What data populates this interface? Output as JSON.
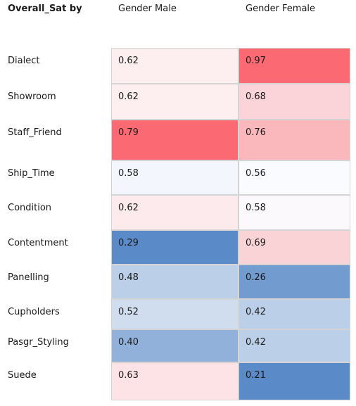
{
  "chart_data": {
    "type": "heatmap",
    "title": "Overall_Sat by",
    "columns": [
      "Gender Male",
      "Gender Female"
    ],
    "rows": [
      "Dialect",
      "Showroom",
      "Staff_Friend",
      "Ship_Time",
      "Condition",
      "Contentment",
      "Panelling",
      "Cupholders",
      "Pasgr_Styling",
      "Suede"
    ],
    "values": [
      [
        "0.62",
        "0.97"
      ],
      [
        "0.62",
        "0.68"
      ],
      [
        "0.79",
        "0.76"
      ],
      [
        "0.58",
        "0.56"
      ],
      [
        "0.62",
        "0.58"
      ],
      [
        "0.29",
        "0.69"
      ],
      [
        "0.48",
        "0.26"
      ],
      [
        "0.52",
        "0.42"
      ],
      [
        "0.40",
        "0.42"
      ],
      [
        "0.63",
        "0.21"
      ]
    ],
    "colors": [
      [
        "#fdeef0",
        "#fb6a72"
      ],
      [
        "#fdeef0",
        "#fad4d8"
      ],
      [
        "#fb6a72",
        "#fab7bc"
      ],
      [
        "#f3f6fc",
        "#fafbfe"
      ],
      [
        "#fdeaed",
        "#fbf9fc"
      ],
      [
        "#5b8ac8",
        "#fad3d6"
      ],
      [
        "#bccfe8",
        "#729bcf"
      ],
      [
        "#d0ddee",
        "#bccfe8"
      ],
      [
        "#92b1da",
        "#bccfe8"
      ],
      [
        "#fde3e6",
        "#5b8ac8"
      ]
    ],
    "color_scale": {
      "low": "#5b8ac8",
      "mid": "#ffffff",
      "high": "#fb6a72"
    }
  }
}
